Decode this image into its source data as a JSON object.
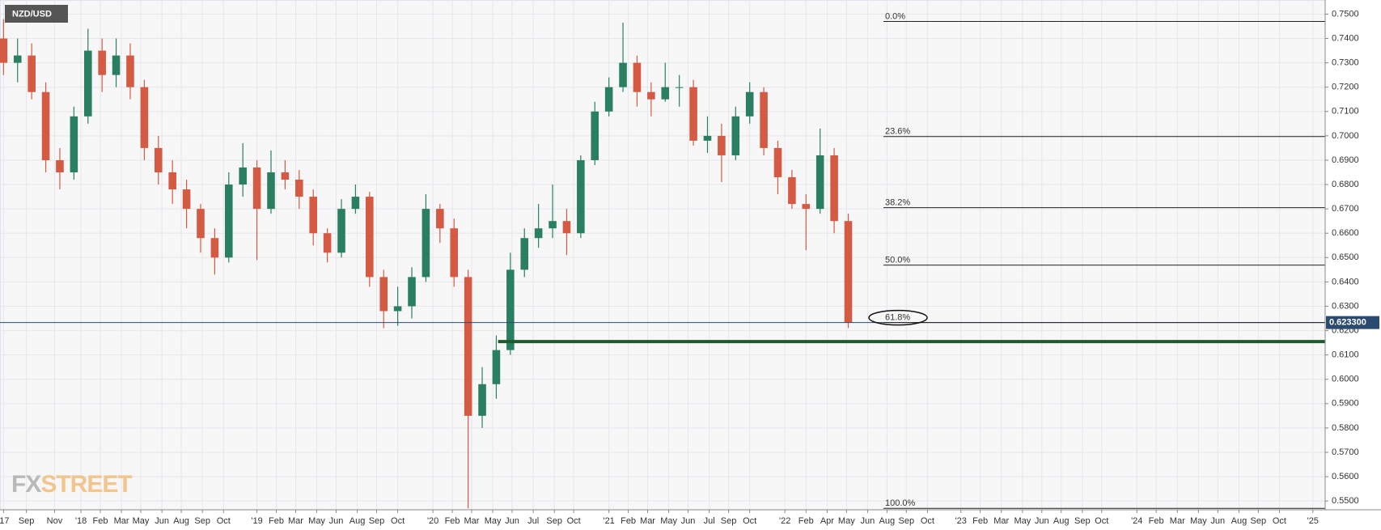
{
  "chart_data": {
    "type": "candlestick",
    "title": "NZD/USD",
    "watermark": {
      "first": "FX",
      "second": "STREET"
    },
    "up_color": "#2a7f62",
    "down_color": "#d55a43",
    "grid": true,
    "xlim": [
      2017.54,
      2025.07
    ],
    "ylim": [
      0.5464,
      0.7558
    ],
    "x": [
      2017.56,
      2017.64,
      2017.72,
      2017.8,
      2017.88,
      2017.96,
      2018.04,
      2018.12,
      2018.2,
      2018.28,
      2018.36,
      2018.44,
      2018.52,
      2018.6,
      2018.68,
      2018.76,
      2018.84,
      2018.92,
      2019.0,
      2019.08,
      2019.16,
      2019.24,
      2019.32,
      2019.4,
      2019.48,
      2019.56,
      2019.64,
      2019.72,
      2019.8,
      2019.88,
      2019.96,
      2020.04,
      2020.12,
      2020.2,
      2020.28,
      2020.36,
      2020.44,
      2020.52,
      2020.6,
      2020.68,
      2020.76,
      2020.84,
      2020.92,
      2021.0,
      2021.08,
      2021.16,
      2021.24,
      2021.32,
      2021.4,
      2021.48,
      2021.56,
      2021.64,
      2021.72,
      2021.8,
      2021.88,
      2021.96,
      2022.04,
      2022.12,
      2022.2,
      2022.28,
      2022.36
    ],
    "open": [
      0.74,
      0.73,
      0.733,
      0.718,
      0.69,
      0.685,
      0.708,
      0.735,
      0.725,
      0.733,
      0.72,
      0.695,
      0.685,
      0.678,
      0.67,
      0.658,
      0.65,
      0.68,
      0.687,
      0.67,
      0.685,
      0.682,
      0.675,
      0.66,
      0.652,
      0.67,
      0.675,
      0.642,
      0.628,
      0.63,
      0.642,
      0.67,
      0.662,
      0.642,
      0.585,
      0.598,
      0.612,
      0.645,
      0.658,
      0.662,
      0.665,
      0.66,
      0.69,
      0.71,
      0.72,
      0.73,
      0.718,
      0.715,
      0.72,
      0.72,
      0.698,
      0.7,
      0.692,
      0.708,
      0.718,
      0.695,
      0.683,
      0.672,
      0.67,
      0.692,
      0.665
    ],
    "high": [
      0.748,
      0.74,
      0.738,
      0.722,
      0.695,
      0.712,
      0.744,
      0.74,
      0.74,
      0.738,
      0.723,
      0.7,
      0.69,
      0.682,
      0.672,
      0.662,
      0.685,
      0.697,
      0.69,
      0.694,
      0.69,
      0.686,
      0.678,
      0.662,
      0.674,
      0.68,
      0.677,
      0.645,
      0.638,
      0.646,
      0.676,
      0.672,
      0.666,
      0.645,
      0.605,
      0.618,
      0.652,
      0.662,
      0.672,
      0.68,
      0.67,
      0.692,
      0.714,
      0.724,
      0.7465,
      0.733,
      0.722,
      0.73,
      0.725,
      0.723,
      0.708,
      0.705,
      0.712,
      0.722,
      0.72,
      0.698,
      0.686,
      0.676,
      0.703,
      0.695,
      0.668
    ],
    "low": [
      0.725,
      0.722,
      0.715,
      0.685,
      0.678,
      0.682,
      0.705,
      0.718,
      0.72,
      0.715,
      0.69,
      0.68,
      0.672,
      0.662,
      0.652,
      0.643,
      0.648,
      0.675,
      0.649,
      0.668,
      0.678,
      0.67,
      0.655,
      0.648,
      0.65,
      0.668,
      0.638,
      0.621,
      0.622,
      0.625,
      0.64,
      0.656,
      0.638,
      0.547,
      0.58,
      0.592,
      0.61,
      0.642,
      0.654,
      0.658,
      0.651,
      0.658,
      0.688,
      0.708,
      0.718,
      0.712,
      0.708,
      0.714,
      0.712,
      0.696,
      0.693,
      0.681,
      0.69,
      0.705,
      0.692,
      0.676,
      0.67,
      0.653,
      0.668,
      0.66,
      0.621
    ],
    "close": [
      0.73,
      0.733,
      0.718,
      0.69,
      0.685,
      0.708,
      0.735,
      0.725,
      0.733,
      0.72,
      0.695,
      0.685,
      0.678,
      0.67,
      0.658,
      0.65,
      0.68,
      0.687,
      0.67,
      0.685,
      0.682,
      0.675,
      0.66,
      0.652,
      0.67,
      0.675,
      0.642,
      0.628,
      0.63,
      0.642,
      0.67,
      0.662,
      0.642,
      0.585,
      0.598,
      0.612,
      0.645,
      0.658,
      0.662,
      0.665,
      0.66,
      0.69,
      0.71,
      0.72,
      0.73,
      0.718,
      0.715,
      0.72,
      0.72,
      0.698,
      0.7,
      0.692,
      0.708,
      0.718,
      0.695,
      0.683,
      0.672,
      0.67,
      0.692,
      0.665,
      0.6233
    ],
    "last_price": {
      "value": 0.6233,
      "label": "0.623300",
      "color": "#2b4a6f"
    },
    "support": {
      "value": 0.6155,
      "start": 2020.37,
      "color": "#1f5a2c"
    },
    "fib_start": 2022.56,
    "fib_levels": [
      {
        "label": "0.0%",
        "value": 0.747
      },
      {
        "label": "23.6%",
        "value": 0.6997
      },
      {
        "label": "38.2%",
        "value": 0.6705
      },
      {
        "label": "50.0%",
        "value": 0.6469
      },
      {
        "label": "61.8%",
        "value": 0.6233,
        "circled": true
      },
      {
        "label": "100.0%",
        "value": 0.547
      }
    ],
    "yticks": [
      {
        "value": 0.55,
        "label": "0.5500"
      },
      {
        "value": 0.56,
        "label": "0.5600"
      },
      {
        "value": 0.57,
        "label": "0.5700"
      },
      {
        "value": 0.58,
        "label": "0.5800"
      },
      {
        "value": 0.59,
        "label": "0.5900"
      },
      {
        "value": 0.6,
        "label": "0.6000"
      },
      {
        "value": 0.61,
        "label": "0.6100"
      },
      {
        "value": 0.62,
        "label": "0.6200"
      },
      {
        "value": 0.63,
        "label": "0.6300"
      },
      {
        "value": 0.64,
        "label": "0.6400"
      },
      {
        "value": 0.65,
        "label": "0.6500"
      },
      {
        "value": 0.66,
        "label": "0.6600"
      },
      {
        "value": 0.67,
        "label": "0.6700"
      },
      {
        "value": 0.68,
        "label": "0.6800"
      },
      {
        "value": 0.69,
        "label": "0.6900"
      },
      {
        "value": 0.7,
        "label": "0.7000"
      },
      {
        "value": 0.71,
        "label": "0.7100"
      },
      {
        "value": 0.72,
        "label": "0.7200"
      },
      {
        "value": 0.73,
        "label": "0.7300"
      },
      {
        "value": 0.74,
        "label": "0.7400"
      },
      {
        "value": 0.75,
        "label": "0.7500"
      }
    ],
    "xticks": [
      {
        "value": 2017.56,
        "label": "'17"
      },
      {
        "value": 2017.69,
        "label": "Sep"
      },
      {
        "value": 2017.85,
        "label": "Nov"
      },
      {
        "value": 2018.0,
        "label": "'18"
      },
      {
        "value": 2018.11,
        "label": "Feb"
      },
      {
        "value": 2018.23,
        "label": "Mar"
      },
      {
        "value": 2018.34,
        "label": "May"
      },
      {
        "value": 2018.46,
        "label": "Jun"
      },
      {
        "value": 2018.57,
        "label": "Aug"
      },
      {
        "value": 2018.69,
        "label": "Sep"
      },
      {
        "value": 2018.81,
        "label": "Oct"
      },
      {
        "value": 2019.0,
        "label": "'19"
      },
      {
        "value": 2019.11,
        "label": "Feb"
      },
      {
        "value": 2019.22,
        "label": "Mar"
      },
      {
        "value": 2019.34,
        "label": "May"
      },
      {
        "value": 2019.45,
        "label": "Jun"
      },
      {
        "value": 2019.57,
        "label": "Aug"
      },
      {
        "value": 2019.68,
        "label": "Sep"
      },
      {
        "value": 2019.8,
        "label": "Oct"
      },
      {
        "value": 2020.0,
        "label": "'20"
      },
      {
        "value": 2020.11,
        "label": "Feb"
      },
      {
        "value": 2020.22,
        "label": "Mar"
      },
      {
        "value": 2020.34,
        "label": "May"
      },
      {
        "value": 2020.45,
        "label": "Jun"
      },
      {
        "value": 2020.57,
        "label": "Jul"
      },
      {
        "value": 2020.69,
        "label": "Sep"
      },
      {
        "value": 2020.8,
        "label": "Oct"
      },
      {
        "value": 2021.0,
        "label": "'21"
      },
      {
        "value": 2021.11,
        "label": "Feb"
      },
      {
        "value": 2021.22,
        "label": "Mar"
      },
      {
        "value": 2021.34,
        "label": "May"
      },
      {
        "value": 2021.45,
        "label": "Jun"
      },
      {
        "value": 2021.57,
        "label": "Jul"
      },
      {
        "value": 2021.68,
        "label": "Sep"
      },
      {
        "value": 2021.8,
        "label": "Oct"
      },
      {
        "value": 2022.0,
        "label": "'22"
      },
      {
        "value": 2022.12,
        "label": "Feb"
      },
      {
        "value": 2022.24,
        "label": "Apr"
      },
      {
        "value": 2022.35,
        "label": "May"
      },
      {
        "value": 2022.47,
        "label": "Jun"
      },
      {
        "value": 2022.58,
        "label": "Aug"
      },
      {
        "value": 2022.69,
        "label": "Sep"
      },
      {
        "value": 2022.81,
        "label": "Oct"
      },
      {
        "value": 2023.0,
        "label": "'23"
      },
      {
        "value": 2023.11,
        "label": "Feb"
      },
      {
        "value": 2023.23,
        "label": "Mar"
      },
      {
        "value": 2023.35,
        "label": "May"
      },
      {
        "value": 2023.46,
        "label": "Jun"
      },
      {
        "value": 2023.57,
        "label": "Aug"
      },
      {
        "value": 2023.69,
        "label": "Sep"
      },
      {
        "value": 2023.8,
        "label": "Oct"
      },
      {
        "value": 2024.0,
        "label": "'24"
      },
      {
        "value": 2024.11,
        "label": "Feb"
      },
      {
        "value": 2024.23,
        "label": "Mar"
      },
      {
        "value": 2024.35,
        "label": "May"
      },
      {
        "value": 2024.46,
        "label": "Jun"
      },
      {
        "value": 2024.58,
        "label": "Aug"
      },
      {
        "value": 2024.69,
        "label": "Sep"
      },
      {
        "value": 2024.81,
        "label": "Oct"
      },
      {
        "value": 2025.0,
        "label": "'25"
      }
    ]
  }
}
